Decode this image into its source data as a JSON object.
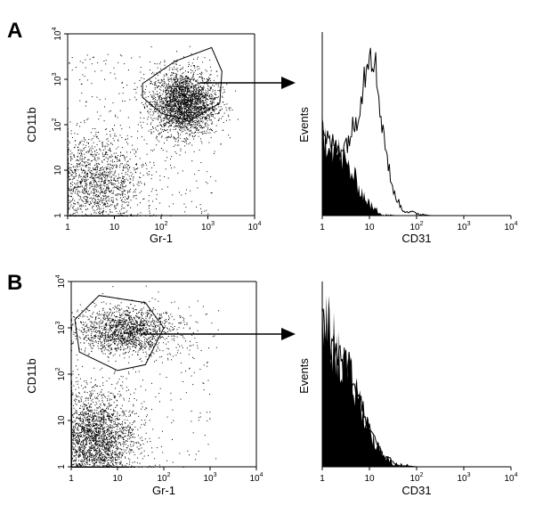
{
  "figure": {
    "panels": [
      {
        "letter": "A",
        "scatter": {
          "x_label": "Gr-1",
          "y_label": "CD11b",
          "x_ticks": [
            "1",
            "10",
            "10^2",
            "10^3",
            "10^4"
          ],
          "y_ticks": [
            "1",
            "10",
            "10^2",
            "10^3",
            "10^4"
          ],
          "scale": "log"
        },
        "histogram": {
          "x_label": "CD31",
          "y_label": "Events",
          "x_ticks": [
            "1",
            "10",
            "10^2",
            "10^3",
            "10^4"
          ],
          "scale": "log"
        }
      },
      {
        "letter": "B",
        "scatter": {
          "x_label": "Gr-1",
          "y_label": "CD11b",
          "x_ticks": [
            "1",
            "10",
            "10^2",
            "10^3",
            "10^4"
          ],
          "y_ticks": [
            "1",
            "10",
            "10^2",
            "10^3",
            "10^4"
          ],
          "scale": "log"
        },
        "histogram": {
          "x_label": "CD31",
          "y_label": "Events",
          "x_ticks": [
            "1",
            "10",
            "10^2",
            "10^3",
            "10^4"
          ],
          "scale": "log"
        }
      }
    ]
  },
  "chart_data": [
    {
      "type": "scatter",
      "panel": "A",
      "xlabel": "Gr-1",
      "ylabel": "CD11b",
      "xscale": "log",
      "yscale": "log",
      "xlim": [
        1,
        10000
      ],
      "ylim": [
        1,
        10000
      ],
      "populations": [
        {
          "center": [
            300,
            300
          ],
          "spread_decades": [
            0.35,
            0.35
          ],
          "density": "high"
        },
        {
          "center": [
            4,
            5
          ],
          "spread_decades": [
            0.5,
            0.55
          ],
          "density": "medium"
        }
      ],
      "gate": [
        [
          40,
          800
        ],
        [
          200,
          2500
        ],
        [
          1200,
          5000
        ],
        [
          2000,
          1500
        ],
        [
          1800,
          300
        ],
        [
          400,
          120
        ],
        [
          100,
          180
        ],
        [
          40,
          400
        ]
      ]
    },
    {
      "type": "area",
      "panel": "A",
      "xlabel": "CD31",
      "ylabel": "Events",
      "xscale": "log",
      "xlim": [
        1,
        10000
      ],
      "series": [
        {
          "style": "filled",
          "x": [
            1,
            1.5,
            2,
            3,
            5,
            8,
            12,
            20,
            40
          ],
          "y": [
            0.45,
            0.42,
            0.36,
            0.3,
            0.2,
            0.1,
            0.04,
            0.01,
            0
          ]
        },
        {
          "style": "outline",
          "x": [
            1,
            2,
            3,
            5,
            8,
            10,
            12,
            15,
            20,
            30,
            50,
            100,
            200
          ],
          "y": [
            0.42,
            0.38,
            0.38,
            0.5,
            0.78,
            0.95,
            0.9,
            0.7,
            0.45,
            0.15,
            0.03,
            0.01,
            0
          ]
        }
      ]
    },
    {
      "type": "scatter",
      "panel": "B",
      "xlabel": "Gr-1",
      "ylabel": "CD11b",
      "xscale": "log",
      "yscale": "log",
      "xlim": [
        1,
        10000
      ],
      "ylim": [
        1,
        10000
      ],
      "populations": [
        {
          "center": [
            15,
            900
          ],
          "spread_decades": [
            0.5,
            0.25
          ],
          "density": "medium"
        },
        {
          "center": [
            3,
            4
          ],
          "spread_decades": [
            0.45,
            0.5
          ],
          "density": "high"
        }
      ],
      "gate": [
        [
          1.2,
          1500
        ],
        [
          4,
          5000
        ],
        [
          40,
          3500
        ],
        [
          100,
          1000
        ],
        [
          40,
          160
        ],
        [
          10,
          120
        ],
        [
          1.5,
          300
        ]
      ]
    },
    {
      "type": "area",
      "panel": "B",
      "xlabel": "CD31",
      "ylabel": "Events",
      "xscale": "log",
      "xlim": [
        1,
        10000
      ],
      "series": [
        {
          "style": "filled",
          "x": [
            1,
            1.5,
            2,
            3,
            5,
            8,
            12,
            20,
            40,
            100
          ],
          "y": [
            0.8,
            0.72,
            0.62,
            0.55,
            0.42,
            0.28,
            0.15,
            0.05,
            0.01,
            0
          ]
        },
        {
          "style": "outline",
          "x": [
            1,
            2,
            3,
            5,
            8,
            12,
            20,
            40,
            100
          ],
          "y": [
            0.78,
            0.62,
            0.55,
            0.42,
            0.28,
            0.16,
            0.06,
            0.01,
            0
          ]
        }
      ]
    }
  ]
}
